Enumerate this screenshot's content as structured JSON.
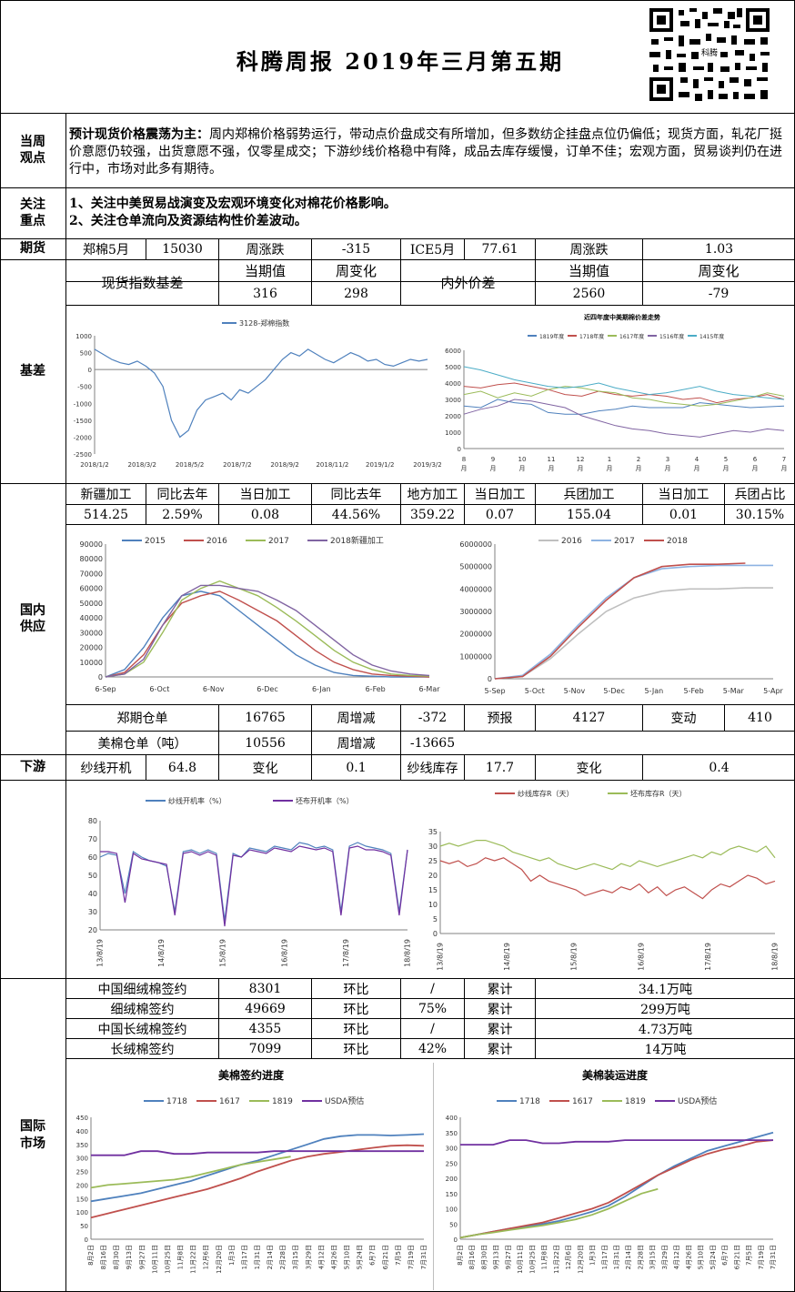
{
  "header": {
    "title": "科腾周报    2019年三月第五期",
    "qr_caption": "科腾"
  },
  "sections": {
    "view": "当周\n观点",
    "focus": "关注\n重点",
    "futures": "期货",
    "basis": "基差",
    "supply": "国内\n供应",
    "downstream": "下游",
    "intl": "国际\n市场"
  },
  "view": {
    "lead": "预计现货价格震荡为主：",
    "text": "周内郑棉价格弱势运行，带动点价盘成交有所增加，但多数纺企挂盘点位仍偏低；现货方面，轧花厂挺价意愿仍较强，出货意愿不强，仅零星成交；下游纱线价格稳中有降，成品去库存缓慢，订单不佳；宏观方面，贸易谈判仍在进行中，市场对此多有期待。"
  },
  "focus": {
    "line1": "1、关注中美贸易战演变及宏观环境变化对棉花价格影响。",
    "line2": "2、关注仓单流向及资源结构性价差波动。"
  },
  "futures_row": [
    "郑棉5月",
    "15030",
    "周涨跌",
    "-315",
    "ICE5月",
    "77.61",
    "周涨跌",
    "1.03"
  ],
  "basis_table": {
    "spot_label": "现货指数基差",
    "current": "当期值",
    "change": "周变化",
    "spot_current": "316",
    "spot_change": "298",
    "inout_label": "内外价差",
    "inout_current": "2560",
    "inout_change": "-79"
  },
  "processing_header": [
    "新疆加工",
    "同比去年",
    "当日加工",
    "同比去年",
    "地方加工",
    "当日加工",
    "兵团加工",
    "当日加工",
    "兵团占比"
  ],
  "processing_values": [
    "514.25",
    "2.59%",
    "0.08",
    "44.56%",
    "359.22",
    "0.07",
    "155.04",
    "0.01",
    "30.15%"
  ],
  "warehouse": {
    "row1": [
      "郑期仓单",
      "16765",
      "周增减",
      "-372",
      "预报",
      "4127",
      "变动",
      "410"
    ],
    "row2": [
      "美棉仓单（吨）",
      "10556",
      "周增减",
      "-13665"
    ]
  },
  "downstream_row": [
    "纱线开机",
    "64.8",
    "变化",
    "0.1",
    "纱线库存",
    "17.7",
    "变化",
    "0.4"
  ],
  "intl_rows": [
    [
      "中国细绒棉签约",
      "8301",
      "环比",
      "/",
      "累计",
      "34.1万吨"
    ],
    [
      "细绒棉签约",
      "49669",
      "环比",
      "75%",
      "累计",
      "299万吨"
    ],
    [
      "中国长绒棉签约",
      "4355",
      "环比",
      "/",
      "累计",
      "4.73万吨"
    ],
    [
      "长绒棉签约",
      "7099",
      "环比",
      "42%",
      "累计",
      "14万吨"
    ]
  ],
  "chart_data": [
    {
      "type": "line",
      "title": "",
      "series": [
        {
          "name": "3128-郑棉指数",
          "values": [
            600,
            450,
            300,
            200,
            150,
            250,
            100,
            -100,
            -500,
            -1500,
            -2000,
            -1800,
            -1200,
            -900,
            -800,
            -700,
            -900,
            -600,
            -700,
            -500,
            -300,
            0,
            300,
            500,
            400,
            600,
            450,
            300,
            200,
            350,
            500,
            400,
            250,
            300,
            150,
            100,
            200,
            300,
            250,
            300
          ]
        }
      ],
      "y_ticks": [
        "1000",
        "500",
        "0",
        "-500",
        "-1000",
        "-1500",
        "-2000",
        "-2500"
      ],
      "x_ticks": [
        "2018/1/2",
        "2018/3/2",
        "2018/5/2",
        "2018/7/2",
        "2018/9/2",
        "2018/11/2",
        "2019/1/2",
        "2019/3/2"
      ],
      "ylim": [
        -2500,
        1000
      ],
      "colors": [
        "#4f81bd"
      ]
    },
    {
      "type": "line",
      "title": "近四年度中美期棉价差走势",
      "series": [
        {
          "name": "1819年度",
          "values": [
            2600,
            2500,
            3000,
            2800,
            2700,
            2200,
            2100,
            2100,
            2300,
            2400,
            2600,
            2500,
            2500,
            2500,
            2800,
            2700,
            2600,
            2500,
            2550,
            2600
          ]
        },
        {
          "name": "1718年度",
          "values": [
            3800,
            3700,
            3900,
            4000,
            3800,
            3600,
            3300,
            3200,
            3500,
            3300,
            3200,
            3300,
            3200,
            3000,
            3100,
            2800,
            3000,
            3100,
            3300,
            3000
          ]
        },
        {
          "name": "1617年度",
          "values": [
            3300,
            3500,
            3100,
            3400,
            3200,
            3600,
            3800,
            3700,
            3500,
            3400,
            3100,
            3000,
            2800,
            2700,
            2600,
            2700,
            2900,
            3100,
            3400,
            3200
          ]
        },
        {
          "name": "1516年度",
          "values": [
            2100,
            2400,
            2600,
            3000,
            2900,
            2700,
            2500,
            2000,
            1700,
            1400,
            1200,
            1100,
            900,
            800,
            700,
            900,
            1100,
            1000,
            1200,
            1100
          ]
        },
        {
          "name": "1415年度",
          "values": [
            5000,
            4800,
            4500,
            4200,
            4000,
            3800,
            3700,
            3800,
            4000,
            3700,
            3500,
            3300,
            3400,
            3600,
            3800,
            3500,
            3300,
            3200,
            3100,
            3000
          ]
        }
      ],
      "y_ticks": [
        "6000",
        "5000",
        "4000",
        "3000",
        "2000",
        "1000",
        "0"
      ],
      "x_ticks": [
        "8\n月",
        "9\n月",
        "10\n月",
        "11\n月",
        "12\n月",
        "1\n月",
        "2\n月",
        "3\n月",
        "4\n月",
        "5\n月",
        "6\n月",
        "7\n月"
      ],
      "ylim": [
        0,
        6000
      ],
      "colors": [
        "#4f81bd",
        "#c0504d",
        "#9bbb59",
        "#8064a2",
        "#4bacc6"
      ]
    },
    {
      "type": "line",
      "title": "",
      "series": [
        {
          "name": "2015",
          "values": [
            0,
            5000,
            20000,
            40000,
            55000,
            58000,
            55000,
            45000,
            35000,
            25000,
            15000,
            8000,
            3000,
            1000,
            500,
            0,
            0,
            0
          ]
        },
        {
          "name": "2016",
          "values": [
            0,
            3000,
            15000,
            35000,
            50000,
            55000,
            58000,
            52000,
            45000,
            38000,
            28000,
            18000,
            10000,
            5000,
            2000,
            1000,
            500,
            0
          ]
        },
        {
          "name": "2017",
          "values": [
            0,
            2000,
            10000,
            30000,
            52000,
            60000,
            65000,
            60000,
            55000,
            47000,
            38000,
            28000,
            18000,
            10000,
            5000,
            2000,
            1000,
            500
          ]
        },
        {
          "name": "2018新疆加工",
          "values": [
            0,
            2000,
            12000,
            35000,
            55000,
            62000,
            62000,
            60000,
            58000,
            52000,
            45000,
            35000,
            25000,
            15000,
            8000,
            4000,
            2000,
            1000
          ]
        }
      ],
      "y_ticks": [
        "90000",
        "80000",
        "70000",
        "60000",
        "50000",
        "40000",
        "30000",
        "20000",
        "10000",
        "0"
      ],
      "x_ticks": [
        "6-Sep",
        "6-Oct",
        "6-Nov",
        "6-Dec",
        "6-Jan",
        "6-Feb",
        "6-Mar"
      ],
      "ylim": [
        0,
        90000
      ],
      "colors": [
        "#4f81bd",
        "#c0504d",
        "#9bbb59",
        "#8064a2"
      ]
    },
    {
      "type": "line",
      "title": "",
      "series": [
        {
          "name": "2016",
          "values": [
            0,
            100000,
            900000,
            2000000,
            3000000,
            3600000,
            3900000,
            4000000,
            4000000,
            4050000,
            4050000
          ]
        },
        {
          "name": "2017",
          "values": [
            0,
            150000,
            1100000,
            2400000,
            3600000,
            4500000,
            4900000,
            5000000,
            5050000,
            5050000,
            5050000
          ]
        },
        {
          "name": "2018",
          "values": [
            0,
            100000,
            1000000,
            2300000,
            3500000,
            4500000,
            5000000,
            5100000,
            5100000,
            5150000
          ]
        }
      ],
      "y_ticks": [
        "6000000",
        "5000000",
        "4000000",
        "3000000",
        "2000000",
        "1000000",
        "0"
      ],
      "x_ticks": [
        "5-Sep",
        "5-Oct",
        "5-Nov",
        "5-Dec",
        "5-Jan",
        "5-Feb",
        "5-Mar",
        "5-Apr"
      ],
      "ylim": [
        0,
        6000000
      ],
      "colors": [
        "#bfbfbf",
        "#8db3e2",
        "#c0504d"
      ]
    },
    {
      "type": "line",
      "title": "",
      "series": [
        {
          "name": "纱线开机率（%）",
          "values": [
            60,
            62,
            61,
            40,
            63,
            60,
            58,
            57,
            55,
            30,
            63,
            64,
            62,
            64,
            62,
            25,
            62,
            60,
            65,
            64,
            63,
            66,
            65,
            64,
            68,
            67,
            65,
            66,
            64,
            30,
            66,
            68,
            66,
            65,
            64,
            62,
            30,
            64
          ]
        },
        {
          "name": "坯布开机率（%）",
          "values": [
            63,
            63,
            62,
            35,
            62,
            59,
            58,
            57,
            56,
            28,
            62,
            63,
            61,
            63,
            61,
            22,
            61,
            60,
            64,
            63,
            62,
            65,
            64,
            63,
            66,
            65,
            64,
            65,
            63,
            28,
            65,
            66,
            64,
            64,
            63,
            61,
            28,
            64
          ]
        }
      ],
      "y_ticks": [
        "80",
        "70",
        "60",
        "50",
        "40",
        "30",
        "20"
      ],
      "x_ticks": [
        "13/8/19",
        "14/8/19",
        "15/8/19",
        "16/8/19",
        "17/8/19",
        "18/8/19"
      ],
      "ylim": [
        20,
        80
      ],
      "colors": [
        "#4f81bd",
        "#7030a0"
      ]
    },
    {
      "type": "line",
      "title": "",
      "series": [
        {
          "name": "纱线库存R（天）",
          "values": [
            25,
            24,
            25,
            23,
            24,
            26,
            25,
            26,
            24,
            22,
            18,
            20,
            18,
            17,
            16,
            15,
            13,
            14,
            15,
            14,
            16,
            15,
            17,
            14,
            16,
            13,
            15,
            16,
            14,
            12,
            15,
            17,
            16,
            18,
            20,
            19,
            17,
            18
          ]
        },
        {
          "name": "坯布库存R（天）",
          "values": [
            30,
            31,
            30,
            31,
            32,
            32,
            31,
            30,
            28,
            27,
            26,
            25,
            26,
            24,
            23,
            22,
            23,
            24,
            23,
            22,
            24,
            23,
            25,
            24,
            23,
            24,
            25,
            26,
            27,
            26,
            28,
            27,
            29,
            30,
            29,
            28,
            30,
            26
          ]
        }
      ],
      "y_ticks": [
        "35",
        "30",
        "25",
        "20",
        "15",
        "10",
        "5",
        "0"
      ],
      "x_ticks": [
        "13/8/19",
        "14/8/19",
        "15/8/19",
        "16/8/19",
        "17/8/19",
        "18/8/19"
      ],
      "ylim": [
        0,
        35
      ],
      "colors": [
        "#c0504d",
        "#9bbb59"
      ]
    },
    {
      "type": "line",
      "title": "美棉签约进度",
      "series": [
        {
          "name": "1718",
          "values": [
            140,
            150,
            160,
            170,
            185,
            200,
            215,
            235,
            255,
            275,
            290,
            310,
            330,
            350,
            370,
            380,
            385,
            385,
            383,
            385,
            388
          ]
        },
        {
          "name": "1617",
          "values": [
            80,
            95,
            110,
            125,
            140,
            155,
            170,
            185,
            205,
            225,
            250,
            270,
            290,
            305,
            315,
            322,
            330,
            338,
            345,
            347,
            345
          ]
        },
        {
          "name": "1819",
          "values": [
            190,
            200,
            205,
            210,
            215,
            220,
            230,
            245,
            260,
            275,
            285,
            295,
            305
          ]
        },
        {
          "name": "USDA预估",
          "values": [
            310,
            310,
            310,
            325,
            325,
            315,
            315,
            320,
            320,
            320,
            320,
            325,
            325,
            325,
            325,
            325,
            325,
            325,
            325,
            325,
            325
          ]
        }
      ],
      "y_ticks": [
        "450",
        "400",
        "350",
        "300",
        "250",
        "200",
        "150",
        "100",
        "50",
        "0"
      ],
      "x_ticks": [
        "8月2日",
        "8月16日",
        "8月30日",
        "9月13日",
        "9月27日",
        "10月11日",
        "10月25日",
        "11月8日",
        "11月22日",
        "12月6日",
        "12月20日",
        "1月3日",
        "1月17日",
        "1月31日",
        "2月14日",
        "2月28日",
        "3月15日",
        "3月29日",
        "4月12日",
        "4月26日",
        "5月10日",
        "5月24日",
        "6月7日",
        "6月21日",
        "7月5日",
        "7月19日",
        "7月31日"
      ],
      "ylim": [
        0,
        450
      ],
      "colors": [
        "#4f81bd",
        "#c0504d",
        "#9bbb59",
        "#7030a0"
      ]
    },
    {
      "type": "line",
      "title": "美棉装运进度",
      "series": [
        {
          "name": "1718",
          "values": [
            5,
            15,
            25,
            35,
            42,
            50,
            60,
            75,
            90,
            110,
            140,
            175,
            210,
            240,
            265,
            290,
            305,
            320,
            335,
            350
          ]
        },
        {
          "name": "1617",
          "values": [
            5,
            15,
            25,
            35,
            45,
            55,
            70,
            85,
            100,
            120,
            150,
            180,
            210,
            235,
            260,
            280,
            295,
            305,
            320,
            325
          ]
        },
        {
          "name": "1819",
          "values": [
            5,
            15,
            22,
            30,
            38,
            45,
            55,
            65,
            80,
            100,
            125,
            150,
            165
          ]
        },
        {
          "name": "USDA预估",
          "values": [
            310,
            310,
            310,
            325,
            325,
            315,
            315,
            320,
            320,
            320,
            325,
            325,
            325,
            325,
            325,
            325,
            325,
            325,
            325,
            325
          ]
        }
      ],
      "y_ticks": [
        "400",
        "350",
        "300",
        "250",
        "200",
        "150",
        "100",
        "50",
        "0"
      ],
      "x_ticks": [
        "8月2日",
        "8月16日",
        "8月30日",
        "9月13日",
        "9月27日",
        "10月11日",
        "10月25日",
        "11月8日",
        "11月22日",
        "12月6日",
        "12月20日",
        "1月3日",
        "1月17日",
        "1月31日",
        "2月14日",
        "2月28日",
        "3月15日",
        "3月29日",
        "4月12日",
        "4月26日",
        "5月10日",
        "5月24日",
        "6月7日",
        "6月21日",
        "7月5日",
        "7月19日",
        "7月31日"
      ],
      "ylim": [
        0,
        400
      ],
      "colors": [
        "#4f81bd",
        "#c0504d",
        "#9bbb59",
        "#7030a0"
      ]
    }
  ]
}
